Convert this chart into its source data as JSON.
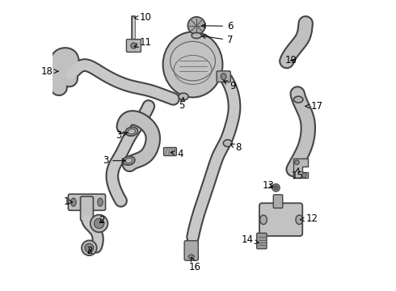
{
  "background_color": "#ffffff",
  "label_fontsize": 8.5,
  "label_color": "#000000",
  "line_color": "#333333",
  "part_color": "#888888",
  "part_fill": "#d8d8d8",
  "hose_fill": "#c8c8c8",
  "hose_edge": "#444444"
}
